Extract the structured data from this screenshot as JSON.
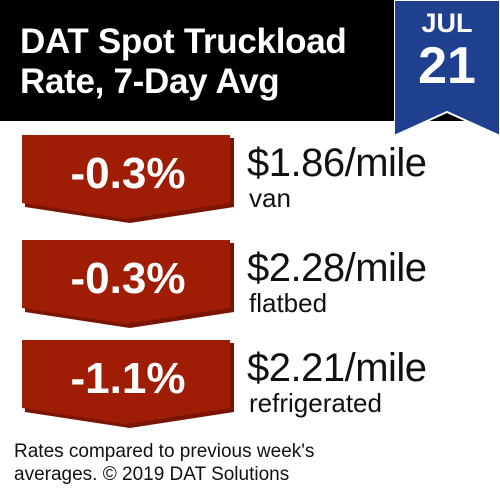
{
  "header": {
    "title_line1": "DAT Spot Truckload",
    "title_line2": "Rate, 7-Day Avg"
  },
  "date": {
    "month": "JUL",
    "day": "21"
  },
  "rates": [
    {
      "change": "-0.3%",
      "price": "$1.86/mile",
      "equipment": "van"
    },
    {
      "change": "-0.3%",
      "price": "$2.28/mile",
      "equipment": "flatbed"
    },
    {
      "change": "-1.1%",
      "price": "$2.21/mile",
      "equipment": "refrigerated"
    }
  ],
  "footnote": {
    "line1": "Rates compared to previous week's",
    "line2": "averages. © 2019 DAT Solutions"
  },
  "colors": {
    "header_bg": "#000000",
    "badge_blue": "#1f3f8f",
    "arrow_red": "#a01d05",
    "arrow_shadow": "#7a1404"
  }
}
